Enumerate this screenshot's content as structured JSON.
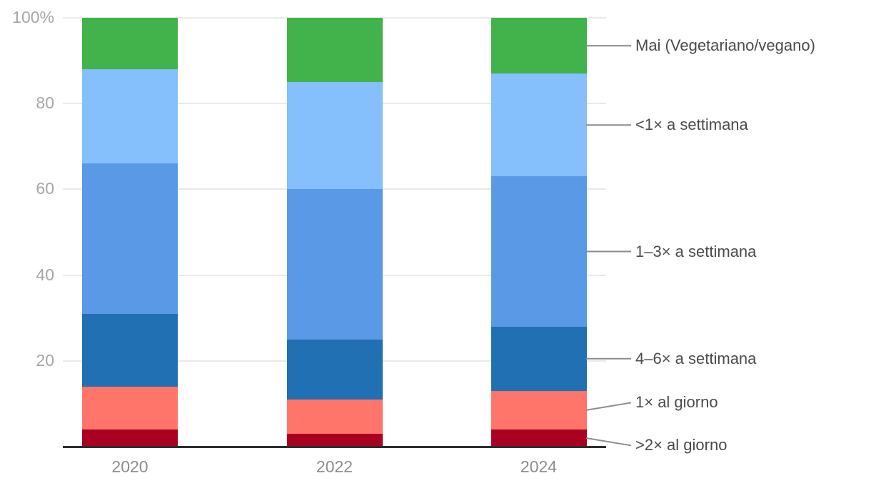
{
  "chart_data": {
    "type": "bar",
    "subtype": "stacked-100-percent",
    "title": "",
    "xlabel": "",
    "ylabel": "",
    "categories": [
      "2020",
      "2022",
      "2024"
    ],
    "series": [
      {
        "name": "Mai (Vegetariano/vegano)",
        "color": "#42b34a",
        "values": [
          12,
          15,
          13
        ]
      },
      {
        "name": "<1× a settimana",
        "color": "#85bffc",
        "values": [
          22,
          25,
          24
        ]
      },
      {
        "name": "1–3× a settimana",
        "color": "#5a99e6",
        "values": [
          35,
          35,
          35
        ]
      },
      {
        "name": "4–6× a settimana",
        "color": "#2170b4",
        "values": [
          17,
          14,
          15
        ]
      },
      {
        "name": "1× al giorno",
        "color": "#ff7569",
        "values": [
          10,
          8,
          9
        ]
      },
      {
        "name": ">2× al giorno",
        "color": "#a90122",
        "values": [
          4,
          3,
          4
        ]
      }
    ],
    "series_order": "top-to-bottom-of-stack",
    "ylim": [
      0,
      100
    ],
    "y_ticks": [
      {
        "value": 100,
        "label": "100%"
      },
      {
        "value": 80,
        "label": "80"
      },
      {
        "value": 60,
        "label": "60"
      },
      {
        "value": 40,
        "label": "40"
      },
      {
        "value": 20,
        "label": "20"
      }
    ],
    "grid": "horizontal",
    "legend_position": "right-with-leader-lines",
    "colors": {
      "background": "#ffffff",
      "grid_line": "#e9e9e9",
      "axis_line": "#2e2e2e",
      "y_tick_text": "#a6a6a6",
      "x_tick_text": "#8c8c8c",
      "legend_text": "#4b4b4b",
      "leader_line": "#8c8c8c"
    }
  }
}
